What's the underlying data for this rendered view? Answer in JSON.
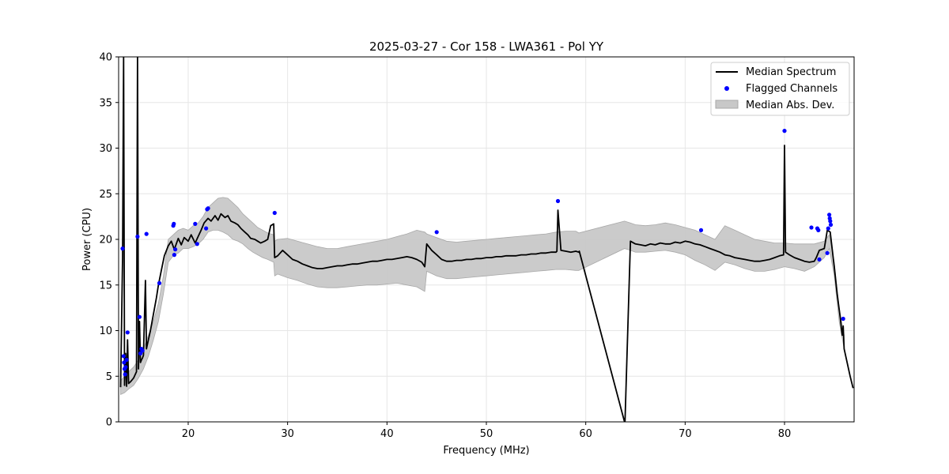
{
  "chart_data": {
    "type": "line",
    "title": "2025-03-27 - Cor 158 - LWA361 - Pol YY",
    "xlabel": "Frequency (MHz)",
    "ylabel": "Power (CPU)",
    "xlim": [
      13,
      87
    ],
    "ylim": [
      0,
      40
    ],
    "x_ticks": [
      20,
      30,
      40,
      50,
      60,
      70,
      80
    ],
    "y_ticks": [
      0,
      5,
      10,
      15,
      20,
      25,
      30,
      35,
      40
    ],
    "grid": true,
    "legend_position": "top-right",
    "legend": [
      "Median Spectrum",
      "Flagged Channels",
      "Median Abs. Dev."
    ],
    "colors": {
      "median": "#000000",
      "flagged": "#0000ff",
      "mad_fill": "#c8c8c8",
      "mad_edge": "#a8a8a8",
      "grid": "#e6e6e6"
    },
    "series": [
      {
        "name": "Median Spectrum",
        "x": [
          13.2,
          13.4,
          13.5,
          13.6,
          13.7,
          13.8,
          13.9,
          14.0,
          14.1,
          14.2,
          14.5,
          14.8,
          14.9,
          15.0,
          15.1,
          15.2,
          15.3,
          15.4,
          15.5,
          15.7,
          15.8,
          15.9,
          16.2,
          16.5,
          16.8,
          17.0,
          17.3,
          17.6,
          18.0,
          18.3,
          18.6,
          19.0,
          19.3,
          19.6,
          20.0,
          20.3,
          20.7,
          21.0,
          21.3,
          21.6,
          22.0,
          22.3,
          22.7,
          23.0,
          23.3,
          23.7,
          24.0,
          24.3,
          24.7,
          25.0,
          25.3,
          25.7,
          26.0,
          26.3,
          26.7,
          27.0,
          27.3,
          27.7,
          28.0,
          28.3,
          28.6,
          28.7,
          29.0,
          29.5,
          30.0,
          30.5,
          31.0,
          31.5,
          32.0,
          32.5,
          33.0,
          33.5,
          34.0,
          34.5,
          35.0,
          35.5,
          36.0,
          36.5,
          37.0,
          37.5,
          38.0,
          38.5,
          39.0,
          39.5,
          40.0,
          40.5,
          41.0,
          41.5,
          42.0,
          42.5,
          43.0,
          43.5,
          43.8,
          44.0,
          44.5,
          45.0,
          45.5,
          46.0,
          46.5,
          47.0,
          47.5,
          48.0,
          48.5,
          49.0,
          49.5,
          50.0,
          50.5,
          51.0,
          51.5,
          52.0,
          52.5,
          53.0,
          53.5,
          54.0,
          54.5,
          55.0,
          55.5,
          56.0,
          56.5,
          57.0,
          57.1,
          57.2,
          57.5,
          58.0,
          58.5,
          59.0,
          59.3,
          59.35,
          63.9,
          63.95,
          64.5,
          65.0,
          65.5,
          66.0,
          66.5,
          67.0,
          67.5,
          68.0,
          68.5,
          69.0,
          69.5,
          70.0,
          70.5,
          71.0,
          71.5,
          72.0,
          72.5,
          73.0,
          73.5,
          74.0,
          74.5,
          75.0,
          75.5,
          76.0,
          76.5,
          77.0,
          77.5,
          78.0,
          78.5,
          79.0,
          79.5,
          79.9,
          80.0,
          80.1,
          80.5,
          81.0,
          81.5,
          82.0,
          82.5,
          83.0,
          83.2,
          83.5,
          84.0,
          84.3,
          84.6,
          85.0,
          85.3,
          85.6,
          85.8,
          85.9,
          86.0,
          86.3,
          86.6,
          86.9
        ],
        "y": [
          3.8,
          18.0,
          40.0,
          4.0,
          7.5,
          3.9,
          9.0,
          4.2,
          4.3,
          4.4,
          4.8,
          5.5,
          40.0,
          5.8,
          11.0,
          6.5,
          6.8,
          7.0,
          7.3,
          15.5,
          8.0,
          8.5,
          10.0,
          11.8,
          13.6,
          15.0,
          16.6,
          18.2,
          19.3,
          19.8,
          18.9,
          20.1,
          19.4,
          20.2,
          19.8,
          20.5,
          19.6,
          20.3,
          21.0,
          21.8,
          22.3,
          22.0,
          22.6,
          22.1,
          22.8,
          22.4,
          22.6,
          22.0,
          21.8,
          21.6,
          21.2,
          20.8,
          20.5,
          20.1,
          20.0,
          19.8,
          19.6,
          19.8,
          20.0,
          21.5,
          21.7,
          18.0,
          18.2,
          18.8,
          18.3,
          17.8,
          17.6,
          17.3,
          17.1,
          16.9,
          16.8,
          16.8,
          16.9,
          17.0,
          17.1,
          17.1,
          17.2,
          17.3,
          17.3,
          17.4,
          17.5,
          17.6,
          17.6,
          17.7,
          17.8,
          17.8,
          17.9,
          18.0,
          18.1,
          18.0,
          17.8,
          17.5,
          17.0,
          19.5,
          18.8,
          18.3,
          17.8,
          17.6,
          17.6,
          17.7,
          17.7,
          17.8,
          17.8,
          17.9,
          17.9,
          18.0,
          18.0,
          18.1,
          18.1,
          18.2,
          18.2,
          18.2,
          18.3,
          18.3,
          18.4,
          18.4,
          18.5,
          18.5,
          18.6,
          18.6,
          18.7,
          23.2,
          18.8,
          18.7,
          18.6,
          18.7,
          18.6,
          18.7,
          0.0,
          0.0,
          19.8,
          19.5,
          19.4,
          19.3,
          19.5,
          19.4,
          19.6,
          19.5,
          19.5,
          19.7,
          19.6,
          19.8,
          19.7,
          19.5,
          19.4,
          19.2,
          19.0,
          18.8,
          18.6,
          18.3,
          18.2,
          18.0,
          17.9,
          17.8,
          17.7,
          17.6,
          17.6,
          17.7,
          17.8,
          18.0,
          18.2,
          18.3,
          30.3,
          18.6,
          18.3,
          18.0,
          17.8,
          17.6,
          17.5,
          17.6,
          18.0,
          18.8,
          19.0,
          21.0,
          20.8,
          17.0,
          14.0,
          11.5,
          9.5,
          10.5,
          8.0,
          6.5,
          5.0,
          3.7
        ]
      },
      {
        "name": "Median Abs. Dev.",
        "x": [
          13.2,
          13.6,
          14.0,
          14.5,
          15.0,
          15.5,
          16.0,
          16.5,
          17.0,
          17.5,
          18.0,
          18.5,
          19.0,
          19.5,
          20.0,
          20.5,
          21.0,
          21.5,
          22.0,
          22.5,
          23.0,
          23.5,
          24.0,
          24.5,
          25.0,
          25.5,
          26.0,
          26.5,
          27.0,
          27.5,
          28.0,
          28.6,
          28.7,
          29.0,
          30.0,
          31.0,
          32.0,
          33.0,
          34.0,
          35.0,
          36.0,
          37.0,
          38.0,
          39.0,
          40.0,
          41.0,
          42.0,
          43.0,
          43.8,
          44.0,
          45.0,
          46.0,
          47.0,
          48.0,
          49.0,
          50.0,
          51.0,
          52.0,
          53.0,
          54.0,
          55.0,
          56.0,
          57.0,
          58.0,
          59.0,
          59.3,
          63.9,
          64.5,
          65.0,
          66.0,
          67.0,
          68.0,
          69.0,
          70.0,
          71.0,
          72.0,
          73.0,
          74.0,
          75.0,
          76.0,
          77.0,
          78.0,
          79.0,
          80.0,
          81.0,
          82.0,
          83.0,
          84.0,
          84.5,
          85.0,
          85.5,
          86.0
        ],
        "lower": [
          3.0,
          3.2,
          3.6,
          4.0,
          4.8,
          5.8,
          7.2,
          9.0,
          11.0,
          14.0,
          17.5,
          18.2,
          18.5,
          19.0,
          19.0,
          19.2,
          19.5,
          20.0,
          20.8,
          21.0,
          21.0,
          20.8,
          20.5,
          20.0,
          19.8,
          19.5,
          19.0,
          18.6,
          18.3,
          18.0,
          17.8,
          17.5,
          16.0,
          16.2,
          15.8,
          15.5,
          15.1,
          14.8,
          14.7,
          14.7,
          14.8,
          14.9,
          15.0,
          15.0,
          15.1,
          15.2,
          15.0,
          14.8,
          14.3,
          16.5,
          16.0,
          15.7,
          15.7,
          15.8,
          15.9,
          16.0,
          16.1,
          16.2,
          16.3,
          16.4,
          16.5,
          16.6,
          16.7,
          16.7,
          16.6,
          16.6,
          19.0,
          18.8,
          18.6,
          18.6,
          18.7,
          18.8,
          18.6,
          18.3,
          17.7,
          17.2,
          16.6,
          17.5,
          17.2,
          16.8,
          16.5,
          16.5,
          16.7,
          17.0,
          16.8,
          16.5,
          17.0,
          18.0,
          19.0,
          16.0,
          11.0,
          8.0
        ],
        "upper": [
          4.5,
          5.0,
          5.5,
          6.0,
          6.8,
          8.0,
          9.5,
          11.0,
          13.0,
          16.0,
          20.0,
          20.5,
          21.0,
          21.2,
          21.0,
          21.5,
          21.8,
          22.5,
          23.5,
          24.0,
          24.5,
          24.6,
          24.5,
          24.0,
          23.5,
          22.8,
          22.3,
          21.8,
          21.3,
          21.0,
          20.7,
          20.5,
          19.8,
          20.0,
          20.1,
          19.8,
          19.5,
          19.2,
          19.0,
          19.0,
          19.2,
          19.4,
          19.6,
          19.8,
          20.0,
          20.3,
          20.6,
          21.0,
          20.8,
          20.6,
          20.2,
          19.8,
          19.7,
          19.8,
          19.9,
          20.0,
          20.1,
          20.2,
          20.3,
          20.4,
          20.5,
          20.6,
          20.8,
          20.9,
          20.9,
          20.7,
          22.0,
          21.8,
          21.6,
          21.5,
          21.6,
          21.8,
          21.6,
          21.3,
          21.0,
          20.5,
          20.0,
          21.5,
          21.0,
          20.5,
          20.0,
          19.8,
          19.6,
          19.6,
          19.5,
          19.5,
          19.5,
          19.8,
          20.5,
          17.5,
          12.5,
          9.5
        ]
      },
      {
        "name": "Flagged Channels",
        "x": [
          13.4,
          13.5,
          13.55,
          13.6,
          13.65,
          13.7,
          13.8,
          13.9,
          14.9,
          15.1,
          15.2,
          15.3,
          15.4,
          15.8,
          17.1,
          18.5,
          18.55,
          18.6,
          18.7,
          20.7,
          20.9,
          21.8,
          21.9,
          22.0,
          28.7,
          45.0,
          57.2,
          71.6,
          80.0,
          82.7,
          83.3,
          83.4,
          83.5,
          84.3,
          84.4,
          84.5,
          84.55,
          84.6,
          84.65,
          85.9
        ],
        "y": [
          19.0,
          7.2,
          6.5,
          5.8,
          5.2,
          6.0,
          6.8,
          9.8,
          20.3,
          11.5,
          7.5,
          8.0,
          7.8,
          20.6,
          15.2,
          21.5,
          21.7,
          18.3,
          18.9,
          21.7,
          19.5,
          21.2,
          23.3,
          23.4,
          22.9,
          20.8,
          24.2,
          21.0,
          31.9,
          21.3,
          21.2,
          21.0,
          17.8,
          18.5,
          21.2,
          22.7,
          22.3,
          22.0,
          21.6,
          11.3
        ]
      }
    ]
  }
}
